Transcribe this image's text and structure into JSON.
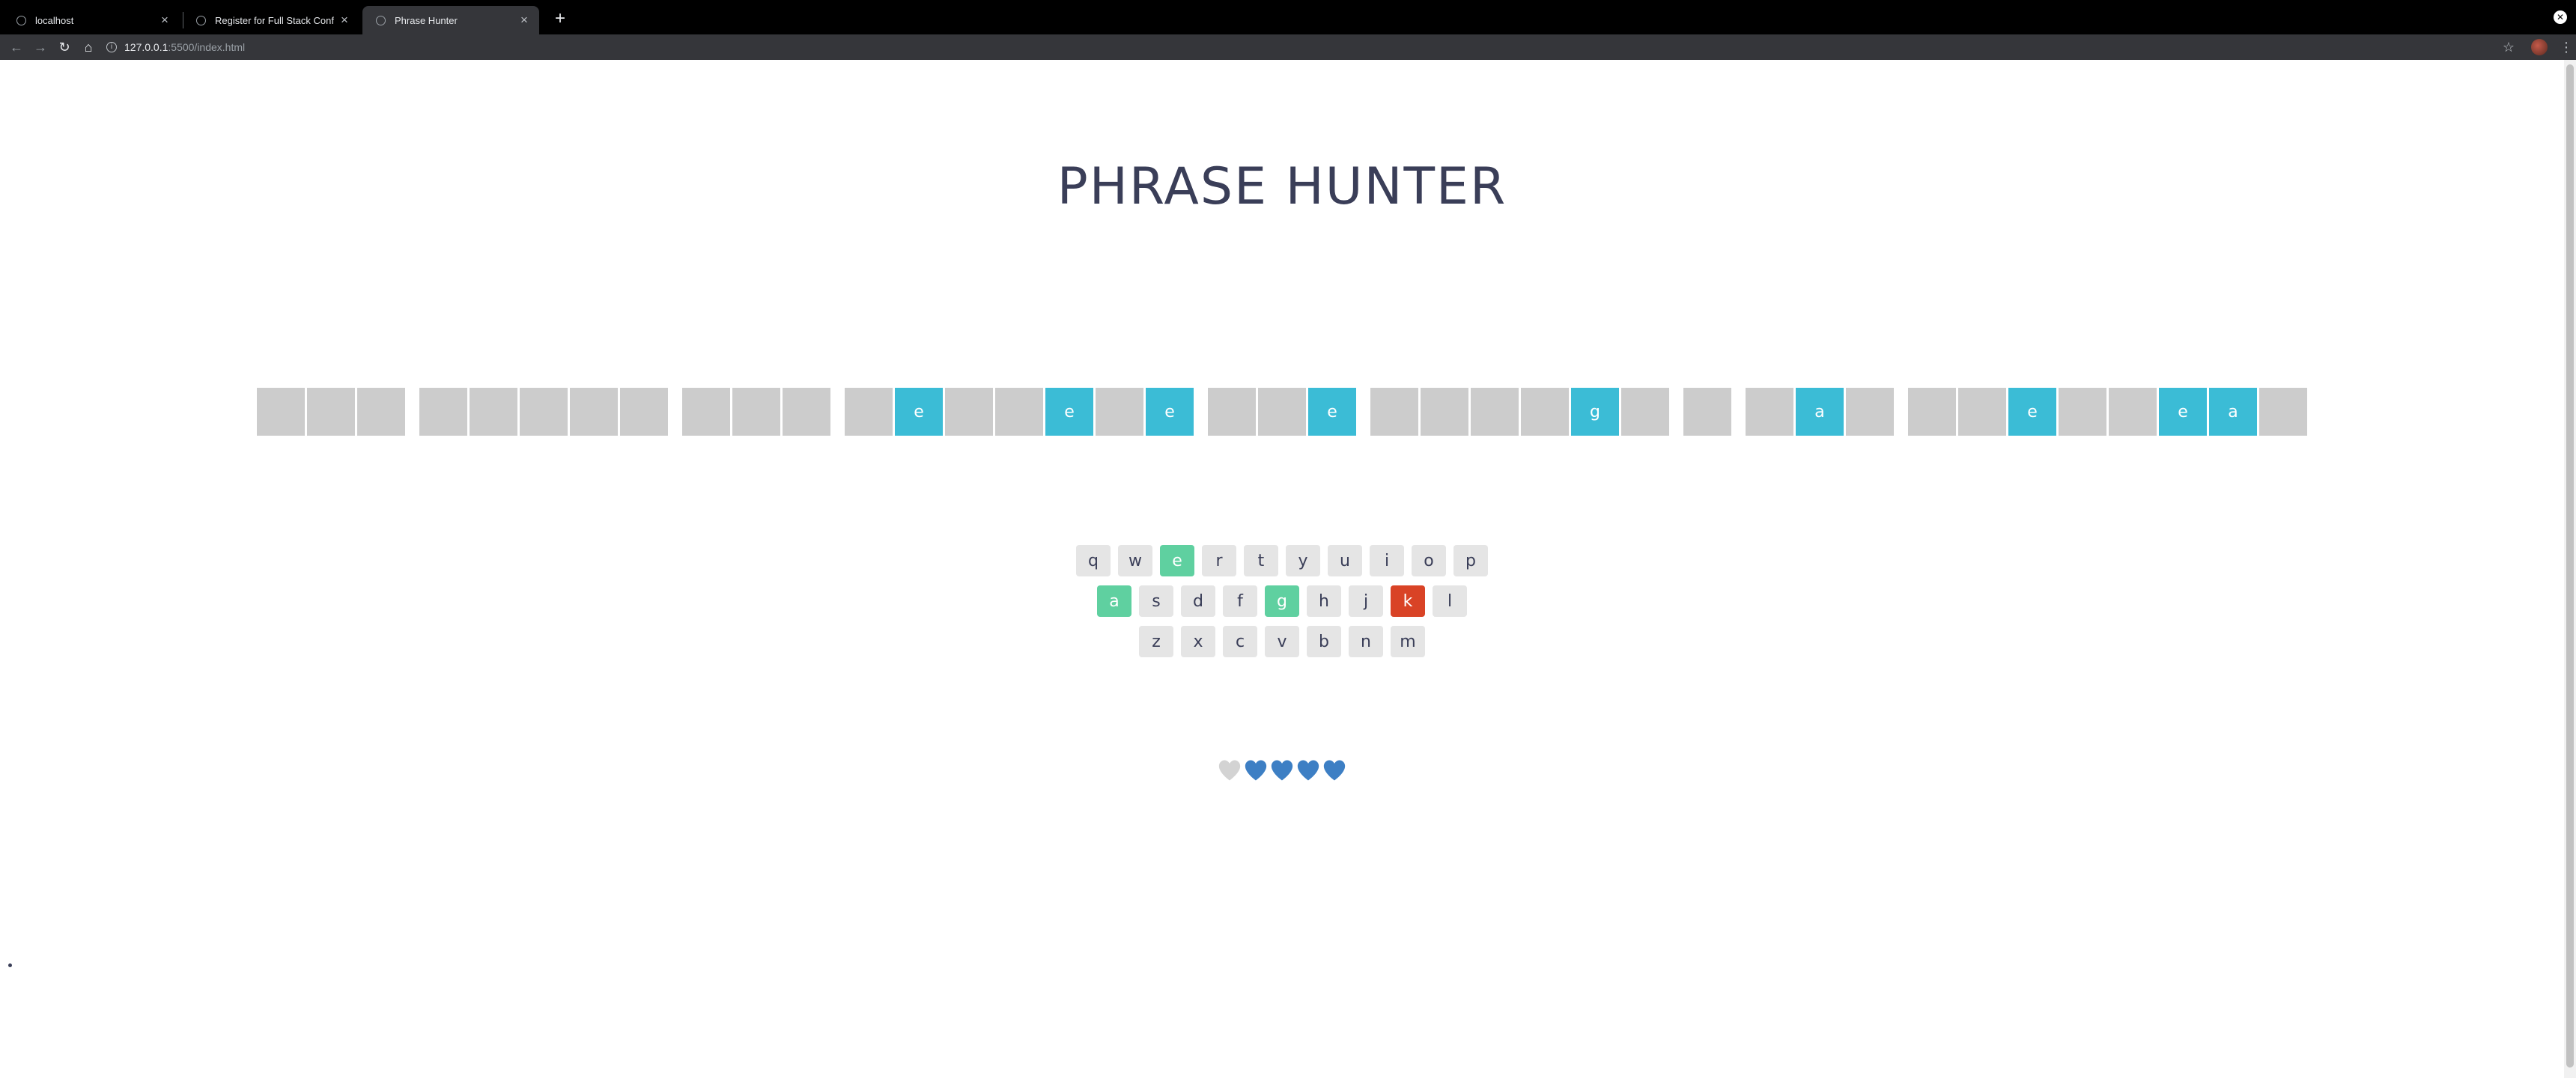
{
  "browser": {
    "tabs": [
      {
        "label": "localhost",
        "active": false
      },
      {
        "label": "Register for Full Stack Conf",
        "active": false
      },
      {
        "label": "Phrase Hunter",
        "active": true
      }
    ],
    "new_tab_label": "+",
    "url_host": "127.0.0.1",
    "url_rest": ":5500/index.html"
  },
  "game": {
    "title": "PHRASE HUNTER",
    "phrase_words": [
      [
        {
          "ch": "",
          "shown": false
        },
        {
          "ch": "",
          "shown": false
        },
        {
          "ch": "",
          "shown": false
        }
      ],
      [
        {
          "ch": "",
          "shown": false
        },
        {
          "ch": "",
          "shown": false
        },
        {
          "ch": "",
          "shown": false
        },
        {
          "ch": "",
          "shown": false
        },
        {
          "ch": "",
          "shown": false
        }
      ],
      [
        {
          "ch": "",
          "shown": false
        },
        {
          "ch": "",
          "shown": false
        },
        {
          "ch": "",
          "shown": false
        }
      ],
      [
        {
          "ch": "",
          "shown": false
        },
        {
          "ch": "e",
          "shown": true
        },
        {
          "ch": "",
          "shown": false
        },
        {
          "ch": "",
          "shown": false
        },
        {
          "ch": "e",
          "shown": true
        },
        {
          "ch": "",
          "shown": false
        },
        {
          "ch": "e",
          "shown": true
        }
      ],
      [
        {
          "ch": "",
          "shown": false
        },
        {
          "ch": "",
          "shown": false
        },
        {
          "ch": "e",
          "shown": true
        }
      ],
      [
        {
          "ch": "",
          "shown": false
        },
        {
          "ch": "",
          "shown": false
        },
        {
          "ch": "",
          "shown": false
        },
        {
          "ch": "",
          "shown": false
        },
        {
          "ch": "g",
          "shown": true
        },
        {
          "ch": "",
          "shown": false
        }
      ],
      [
        {
          "ch": "",
          "shown": false
        }
      ],
      [
        {
          "ch": "",
          "shown": false
        },
        {
          "ch": "a",
          "shown": true
        },
        {
          "ch": "",
          "shown": false
        }
      ],
      [
        {
          "ch": "",
          "shown": false
        },
        {
          "ch": "",
          "shown": false
        },
        {
          "ch": "e",
          "shown": true
        },
        {
          "ch": "",
          "shown": false
        },
        {
          "ch": "",
          "shown": false
        },
        {
          "ch": "e",
          "shown": true
        },
        {
          "ch": "a",
          "shown": true
        },
        {
          "ch": "",
          "shown": false
        }
      ]
    ],
    "keyboard_rows": [
      [
        {
          "key": "q",
          "state": ""
        },
        {
          "key": "w",
          "state": ""
        },
        {
          "key": "e",
          "state": "chosen"
        },
        {
          "key": "r",
          "state": ""
        },
        {
          "key": "t",
          "state": ""
        },
        {
          "key": "y",
          "state": ""
        },
        {
          "key": "u",
          "state": ""
        },
        {
          "key": "i",
          "state": ""
        },
        {
          "key": "o",
          "state": ""
        },
        {
          "key": "p",
          "state": ""
        }
      ],
      [
        {
          "key": "a",
          "state": "chosen"
        },
        {
          "key": "s",
          "state": ""
        },
        {
          "key": "d",
          "state": ""
        },
        {
          "key": "f",
          "state": ""
        },
        {
          "key": "g",
          "state": "chosen"
        },
        {
          "key": "h",
          "state": ""
        },
        {
          "key": "j",
          "state": ""
        },
        {
          "key": "k",
          "state": "wrong"
        },
        {
          "key": "l",
          "state": ""
        }
      ],
      [
        {
          "key": "z",
          "state": ""
        },
        {
          "key": "x",
          "state": ""
        },
        {
          "key": "c",
          "state": ""
        },
        {
          "key": "v",
          "state": ""
        },
        {
          "key": "b",
          "state": ""
        },
        {
          "key": "n",
          "state": ""
        },
        {
          "key": "m",
          "state": ""
        }
      ]
    ],
    "lives": {
      "total": 5,
      "remaining": 4,
      "lost_color": "#d3d3d3",
      "live_color": "#3d7fc4"
    }
  },
  "colors": {
    "revealed_letter": "#3bbcd6",
    "hidden_letter": "#cccccc",
    "key_chosen": "#5fd0a0",
    "key_wrong": "#d94326",
    "title": "#3a3e58"
  },
  "icons": {
    "tab_close": "close-icon",
    "back": "back-arrow-icon",
    "forward": "forward-arrow-icon",
    "reload": "reload-icon",
    "home": "home-icon",
    "bookmark": "star-icon",
    "menu": "kebab-menu-icon",
    "life": "heart-icon"
  }
}
